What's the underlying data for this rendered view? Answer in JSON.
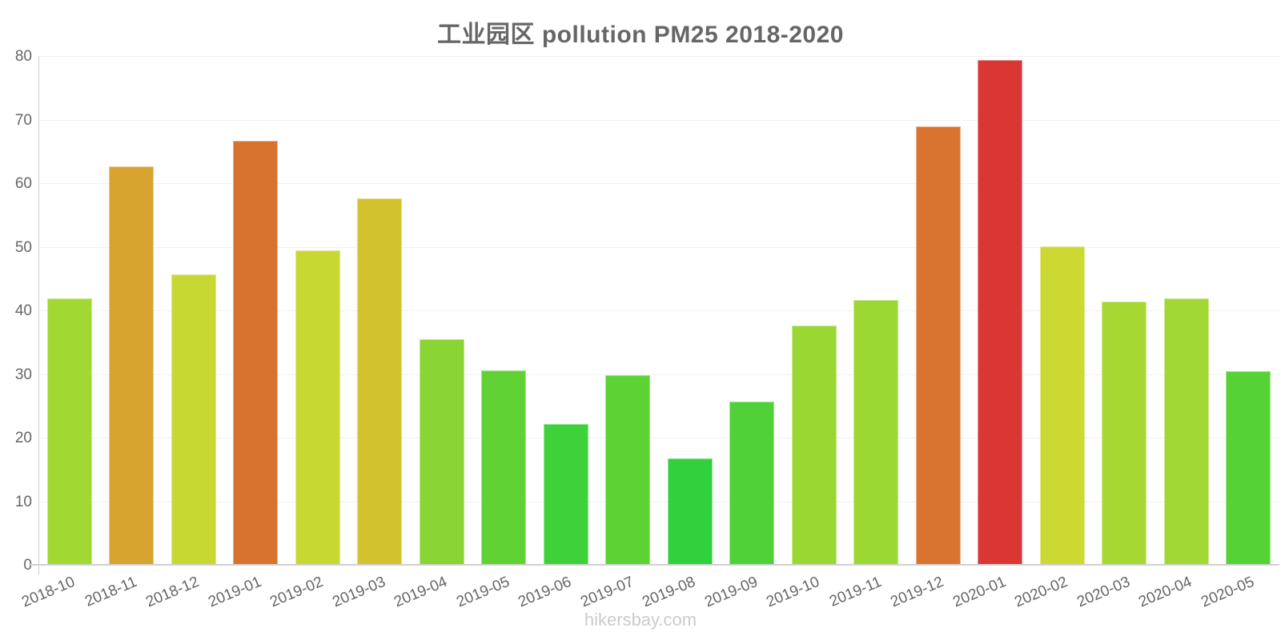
{
  "page": {
    "watermark": "hikersbay.com"
  },
  "chart_data": {
    "type": "bar",
    "title": "工业园区 pollution PM25 2018-2020",
    "xlabel": "",
    "ylabel": "",
    "categories": [
      "2018-10",
      "2018-11",
      "2018-12",
      "2019-01",
      "2019-02",
      "2019-03",
      "2019-04",
      "2019-05",
      "2019-06",
      "2019-07",
      "2019-08",
      "2019-09",
      "2019-10",
      "2019-11",
      "2019-12",
      "2020-01",
      "2020-02",
      "2020-03",
      "2020-04",
      "2020-05"
    ],
    "values": [
      41.7,
      62.5,
      45.5,
      66.5,
      49.3,
      57.5,
      35.4,
      30.5,
      22.0,
      29.7,
      16.6,
      25.5,
      37.5,
      41.5,
      68.8,
      79.2,
      49.9,
      41.3,
      41.8,
      30.3
    ],
    "bar_colors": [
      "#a2d832",
      "#d6a42f",
      "#c6d831",
      "#d8722f",
      "#c6d831",
      "#d2c32e",
      "#8ad433",
      "#60d234",
      "#3ed139",
      "#5cd235",
      "#30d13c",
      "#50d137",
      "#99d833",
      "#9bd833",
      "#d8742f",
      "#d93634",
      "#cbd932",
      "#a5d833",
      "#a2d833",
      "#55d235"
    ],
    "ylim": [
      0,
      80
    ],
    "yticks": [
      0,
      10,
      20,
      30,
      40,
      50,
      60,
      70,
      80
    ],
    "grid": "horizontal-light",
    "legend": "none"
  }
}
